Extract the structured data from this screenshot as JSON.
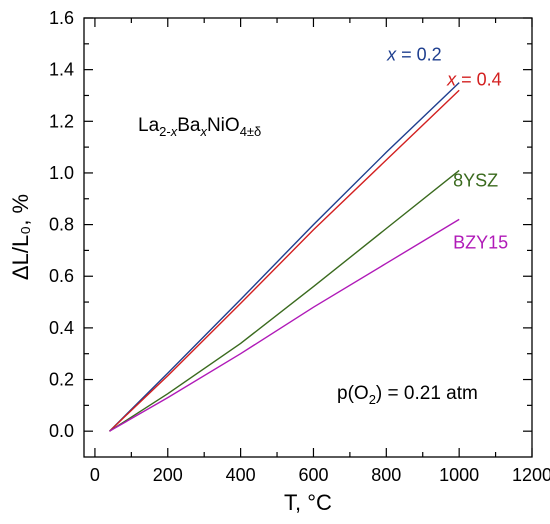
{
  "chart_data": {
    "type": "line",
    "xlabel": "T, °C",
    "ylabel": "ΔL/L₀, %",
    "xlim": [
      -30,
      1200
    ],
    "ylim": [
      -0.1,
      1.6
    ],
    "xticks": [
      0,
      200,
      400,
      600,
      800,
      1000,
      1200
    ],
    "yticks": [
      0.0,
      0.2,
      0.4,
      0.6,
      0.8,
      1.0,
      1.2,
      1.4,
      1.6
    ],
    "xtick_labels": [
      "0",
      "200",
      "400",
      "600",
      "800",
      "1000",
      "1200"
    ],
    "ytick_labels": [
      "0.0",
      "0.2",
      "0.4",
      "0.6",
      "0.8",
      "1.0",
      "1.2",
      "1.4",
      "1.6"
    ],
    "grid": false,
    "series": [
      {
        "name": "x = 0.2",
        "label_var": "x",
        "label_rest": " = 0.2",
        "color": "#1f3f8f",
        "x": [
          40,
          200,
          400,
          600,
          800,
          1000
        ],
        "y": [
          0.0,
          0.225,
          0.51,
          0.8,
          1.08,
          1.35
        ]
      },
      {
        "name": "x = 0.4",
        "label_var": "x",
        "label_rest": " = 0.4",
        "color": "#d32020",
        "x": [
          40,
          200,
          400,
          600,
          800,
          1000
        ],
        "y": [
          0.0,
          0.215,
          0.495,
          0.78,
          1.05,
          1.32
        ]
      },
      {
        "name": "8YSZ",
        "label_var": "",
        "label_rest": "8YSZ",
        "color": "#3a6a1e",
        "x": [
          40,
          200,
          400,
          600,
          800,
          1000
        ],
        "y": [
          0.0,
          0.145,
          0.34,
          0.56,
          0.785,
          1.01
        ]
      },
      {
        "name": "BZY15",
        "label_var": "",
        "label_rest": "BZY15",
        "color": "#b01ab8",
        "x": [
          40,
          200,
          400,
          600,
          800,
          1000
        ],
        "y": [
          0.0,
          0.13,
          0.3,
          0.48,
          0.65,
          0.82
        ]
      }
    ],
    "annotations": {
      "formula": {
        "p1": "La",
        "s1": "2-",
        "s1v": "x",
        "p2": "Ba",
        "s2v": "x",
        "p3": "NiO",
        "s3": "4±δ"
      },
      "condition": {
        "p1": "p(O",
        "s1": "2",
        "p2": ") = 0.21 atm"
      }
    }
  }
}
